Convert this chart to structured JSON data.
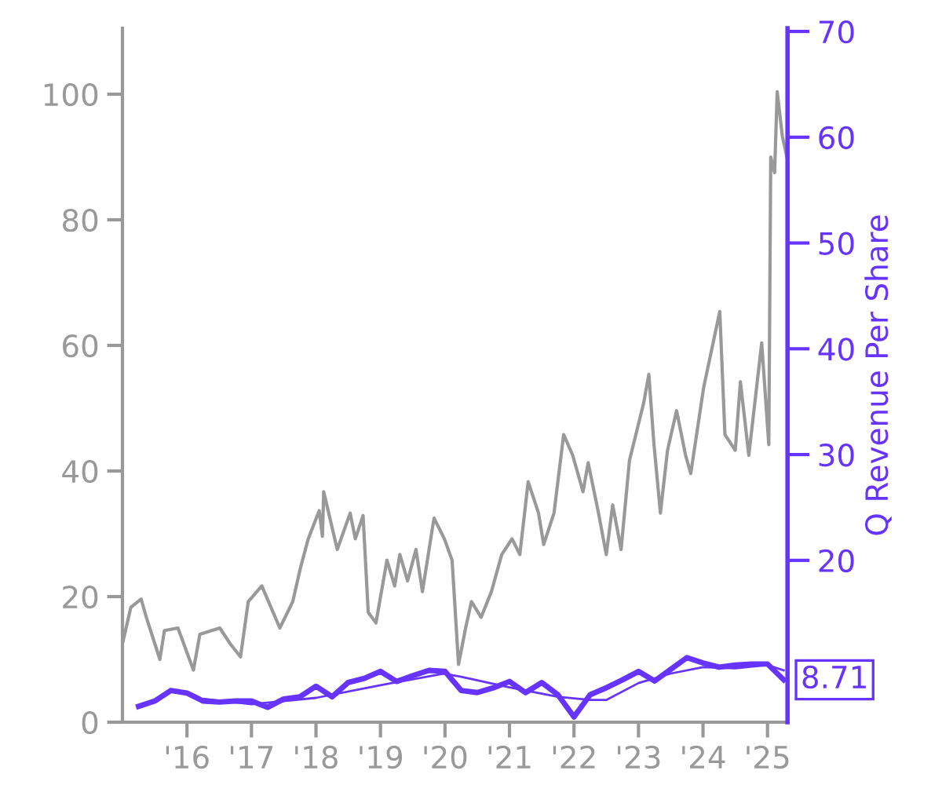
{
  "chart_data": {
    "type": "line",
    "y2label": "Q Revenue Per Share",
    "xlim": [
      2015.0,
      2025.31
    ],
    "xticks": [
      {
        "value": 2016,
        "label": "'16"
      },
      {
        "value": 2017,
        "label": "'17"
      },
      {
        "value": 2018,
        "label": "'18"
      },
      {
        "value": 2019,
        "label": "'19"
      },
      {
        "value": 2020,
        "label": "'20"
      },
      {
        "value": 2021,
        "label": "'21"
      },
      {
        "value": 2022,
        "label": "'22"
      },
      {
        "value": 2023,
        "label": "'23"
      },
      {
        "value": 2024,
        "label": "'24"
      },
      {
        "value": 2025,
        "label": "'25"
      }
    ],
    "ylim": [
      0,
      110.5
    ],
    "yticks": [
      0,
      20,
      40,
      60,
      80,
      100
    ],
    "y2lim": [
      4.7,
      70.3
    ],
    "y2ticks": [
      20,
      30,
      40,
      50,
      60,
      70
    ],
    "grid": false,
    "legend": false,
    "series": [
      {
        "color": "#999999",
        "x": [
          2015.0,
          2015.13,
          2015.29,
          2015.37,
          2015.58,
          2015.65,
          2015.86,
          2016.1,
          2016.2,
          2016.51,
          2016.67,
          2016.83,
          2016.95,
          2017.16,
          2017.44,
          2017.64,
          2017.76,
          2017.88,
          2018.05,
          2018.1,
          2018.12,
          2018.33,
          2018.53,
          2018.61,
          2018.73,
          2018.81,
          2018.93,
          2019.1,
          2019.22,
          2019.3,
          2019.42,
          2019.55,
          2019.65,
          2019.83,
          2019.99,
          2020.11,
          2020.21,
          2020.32,
          2020.41,
          2020.56,
          2020.72,
          2020.88,
          2021.04,
          2021.16,
          2021.29,
          2021.45,
          2021.53,
          2021.69,
          2021.84,
          2021.98,
          2022.14,
          2022.22,
          2022.38,
          2022.5,
          2022.6,
          2022.73,
          2022.86,
          2023.08,
          2023.16,
          2023.24,
          2023.34,
          2023.45,
          2023.59,
          2023.73,
          2023.81,
          2024.01,
          2024.26,
          2024.34,
          2024.5,
          2024.58,
          2024.71,
          2024.91,
          2025.02,
          2025.05,
          2025.11,
          2025.15,
          2025.23,
          2025.3
        ],
        "values": [
          12.5,
          18.3,
          19.6,
          16.7,
          10,
          14.6,
          15,
          8.3,
          14,
          15,
          12.5,
          10.4,
          19.2,
          21.7,
          15,
          19.2,
          24.6,
          29.2,
          33.7,
          29.6,
          36.7,
          27.5,
          33.3,
          29.2,
          32.9,
          17.5,
          15.8,
          25.8,
          21.7,
          26.7,
          22.5,
          27.5,
          20.8,
          32.5,
          29.2,
          25.8,
          9.2,
          15,
          19.2,
          16.7,
          20.8,
          26.7,
          29.2,
          26.7,
          38.3,
          33.3,
          28.3,
          33.3,
          45.8,
          42.5,
          36.7,
          41.3,
          33.3,
          26.7,
          34.6,
          27.5,
          41.7,
          50.8,
          55.4,
          44.2,
          33.3,
          43.3,
          49.6,
          42.5,
          39.6,
          53.3,
          65.4,
          45.8,
          43.3,
          54.2,
          42.5,
          60.4,
          44.2,
          90,
          87.5,
          100.4,
          93.3,
          90
        ]
      },
      {
        "color": "#6633ff",
        "axis": "y2",
        "x": [
          2015.25,
          2015.5,
          2015.75,
          2016.0,
          2016.25,
          2016.5,
          2016.75,
          2017.0,
          2017.25,
          2017.5,
          2017.75,
          2018.0,
          2018.25,
          2018.5,
          2018.75,
          2019.0,
          2019.25,
          2019.5,
          2019.75,
          2020.0,
          2020.25,
          2020.5,
          2020.75,
          2021.0,
          2021.25,
          2021.5,
          2021.75,
          2022.0,
          2022.25,
          2022.5,
          2022.75,
          2023.0,
          2023.25,
          2023.5,
          2023.75,
          2024.0,
          2024.25,
          2024.5,
          2024.75,
          2025.0,
          2025.25
        ],
        "values": [
          6.2,
          6.7,
          7.7,
          7.45,
          6.7,
          6.6,
          6.7,
          6.7,
          6.1,
          6.9,
          7.1,
          8.1,
          7.1,
          8.45,
          8.85,
          9.5,
          8.55,
          9.1,
          9.6,
          9.5,
          7.7,
          7.5,
          7.95,
          8.55,
          7.5,
          8.45,
          7.3,
          5.2,
          7.3,
          7.95,
          8.7,
          9.5,
          8.6,
          9.7,
          10.8,
          10.3,
          9.9,
          10.1,
          10.2,
          10.2,
          8.71
        ],
        "value_labels": [
          null,
          null,
          null,
          null,
          null,
          null,
          null,
          null,
          null,
          null,
          null,
          null,
          null,
          null,
          null,
          null,
          null,
          null,
          null,
          null,
          null,
          null,
          null,
          null,
          null,
          null,
          null,
          null,
          null,
          null,
          null,
          null,
          null,
          null,
          null,
          null,
          null,
          null,
          null,
          null,
          "8.71"
        ]
      },
      {
        "color": "#6633ff",
        "axis": "y2",
        "x": [
          2016.27,
          2017.0,
          2018.0,
          2019.0,
          2019.98,
          2020.25,
          2021.0,
          2021.75,
          2022.25,
          2022.5,
          2023.0,
          2023.5,
          2024.0,
          2024.5,
          2025.0,
          2025.25
        ],
        "values": [
          6.9,
          6.4,
          7.0,
          8.2,
          9.3,
          9.0,
          8.0,
          7.1,
          6.8,
          6.8,
          8.4,
          9.3,
          9.9,
          9.8,
          10.1,
          9.6
        ]
      }
    ]
  }
}
